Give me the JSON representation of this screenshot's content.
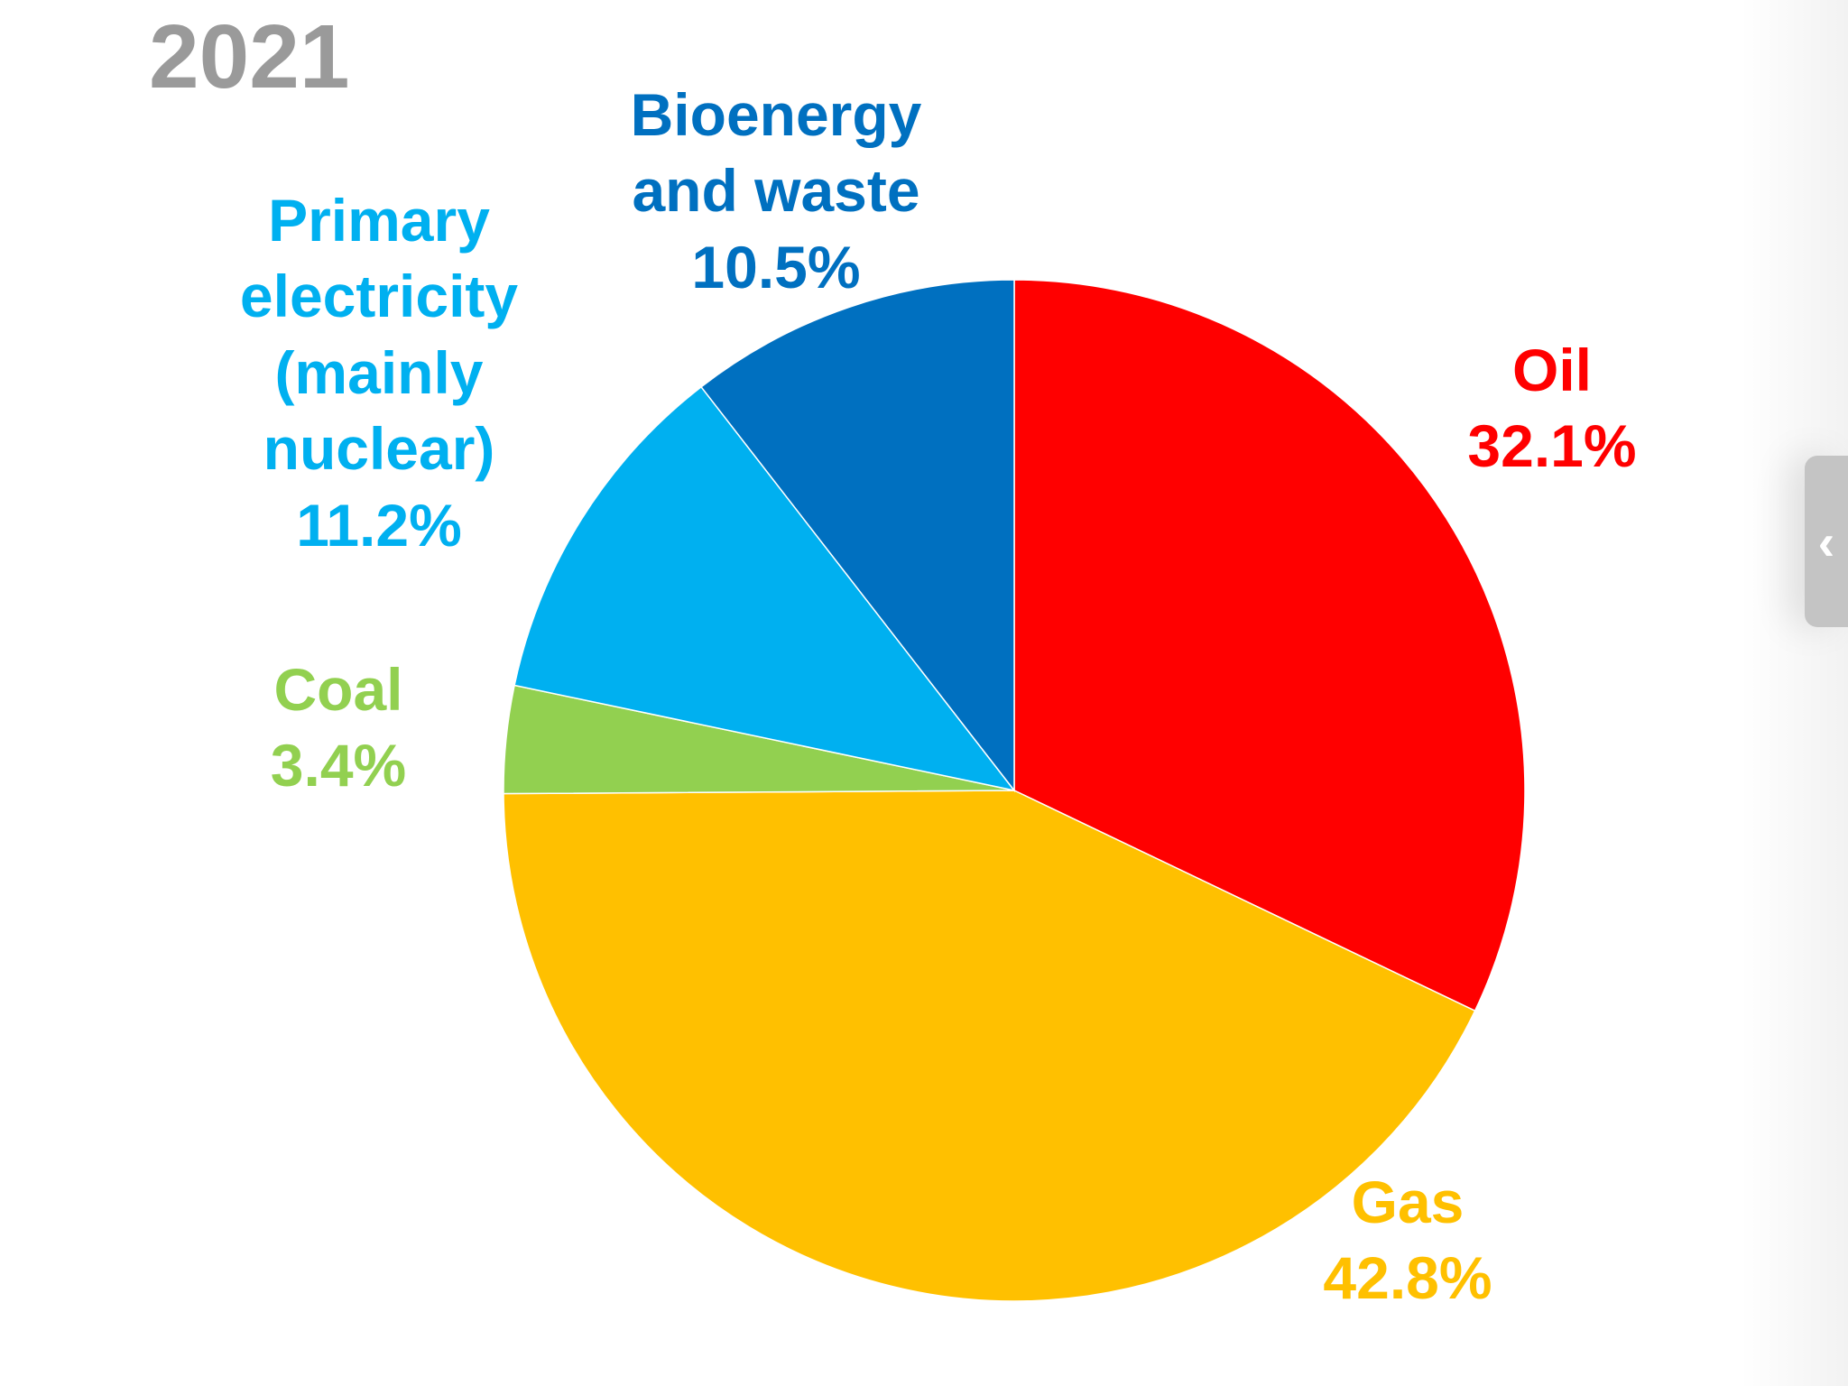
{
  "chart_data": {
    "type": "pie",
    "title": "2021",
    "slices": [
      {
        "label_lines": [
          "Oil"
        ],
        "value": 32.1,
        "value_text": "32.1%",
        "color": "#FF0000"
      },
      {
        "label_lines": [
          "Gas"
        ],
        "value": 42.8,
        "value_text": "42.8%",
        "color": "#FFC000"
      },
      {
        "label_lines": [
          "Coal"
        ],
        "value": 3.4,
        "value_text": "3.4%",
        "color": "#92D050"
      },
      {
        "label_lines": [
          "Primary",
          "electricity",
          "(mainly",
          "nuclear)"
        ],
        "value": 11.2,
        "value_text": "11.2%",
        "color": "#00B0F0"
      },
      {
        "label_lines": [
          "Bioenergy",
          "and waste"
        ],
        "value": 10.5,
        "value_text": "10.5%",
        "color": "#0070C0"
      }
    ],
    "start_angle": "12 o'clock",
    "direction": "clockwise",
    "label_colors": {
      "Oil": "#FF0000",
      "Gas": "#FFC000",
      "Coal": "#92D050",
      "Primary electricity": "#00B0F0",
      "Bioenergy": "#0070C0"
    }
  },
  "side_tab": {
    "icon": "chevron-left-icon",
    "glyph": "‹"
  }
}
